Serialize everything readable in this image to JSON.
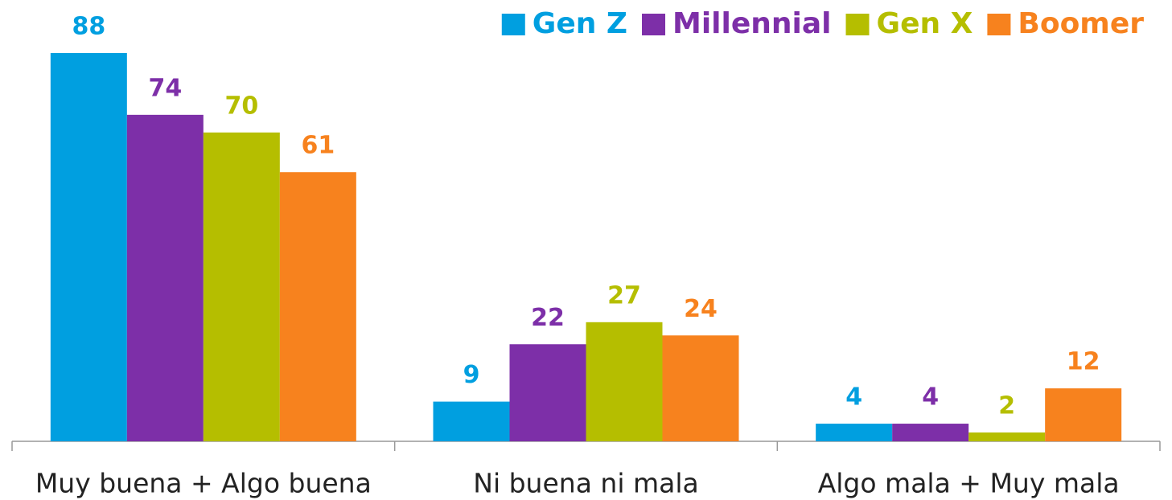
{
  "chart_data": {
    "type": "bar",
    "categories": [
      "Muy buena + Algo buena",
      "Ni buena ni mala",
      "Algo mala + Muy mala"
    ],
    "series": [
      {
        "name": "Gen Z",
        "color": "#009fe0",
        "values": [
          88,
          9,
          4
        ]
      },
      {
        "name": "Millennial",
        "color": "#7d2fa8",
        "values": [
          74,
          22,
          4
        ]
      },
      {
        "name": "Gen X",
        "color": "#b5be00",
        "values": [
          70,
          27,
          2
        ]
      },
      {
        "name": "Boomer",
        "color": "#f7821e",
        "values": [
          61,
          24,
          12
        ]
      }
    ],
    "legend": "top-right"
  }
}
